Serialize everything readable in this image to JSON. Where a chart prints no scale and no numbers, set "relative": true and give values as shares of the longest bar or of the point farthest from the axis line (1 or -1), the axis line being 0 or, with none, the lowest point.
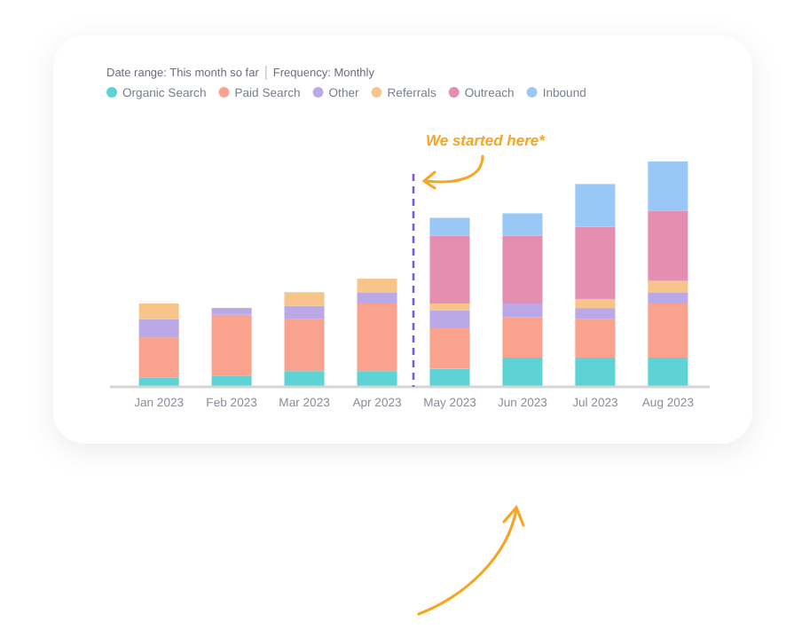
{
  "chart_data": {
    "type": "bar",
    "stacked": true,
    "relative": true,
    "title": "Date range: This month so far",
    "subtitle": "Frequency: Monthly",
    "legend": "top left",
    "categories": [
      "Jan 2023",
      "Feb 2023",
      "Mar 2023",
      "Apr 2023",
      "May 2023",
      "Jun 2023",
      "Jul 2023",
      "Aug 2023"
    ],
    "series": [
      {
        "name": "Organic Search",
        "color": "#5dd3d6",
        "values": [
          0.04,
          0.05,
          0.07,
          0.07,
          0.08,
          0.13,
          0.13,
          0.13
        ]
      },
      {
        "name": "Paid Search",
        "color": "#f9a28e",
        "values": [
          0.18,
          0.27,
          0.23,
          0.3,
          0.18,
          0.18,
          0.17,
          0.24
        ]
      },
      {
        "name": "Other",
        "color": "#bba8e6",
        "values": [
          0.08,
          0.03,
          0.06,
          0.05,
          0.08,
          0.06,
          0.05,
          0.05
        ]
      },
      {
        "name": "Referrals",
        "color": "#f7c48a",
        "values": [
          0.07,
          0,
          0.06,
          0.06,
          0.03,
          0,
          0.04,
          0.05
        ]
      },
      {
        "name": "Outreach",
        "color": "#e58fb0",
        "values": [
          0,
          0,
          0,
          0,
          0.3,
          0.3,
          0.32,
          0.31
        ]
      },
      {
        "name": "Inbound",
        "color": "#99c8f7",
        "values": [
          0,
          0,
          0,
          0,
          0.08,
          0.1,
          0.19,
          0.22
        ]
      }
    ],
    "ref_lines": [
      {
        "axis": "x",
        "value": "May 2023",
        "label": null,
        "color": "#7b5cd6",
        "line_style": "dashed"
      }
    ],
    "annotations": [
      "We started here*"
    ]
  }
}
